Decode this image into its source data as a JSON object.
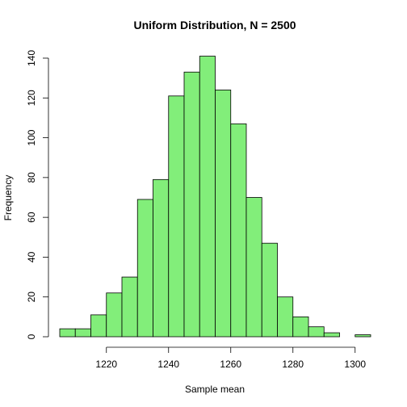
{
  "chart_data": {
    "type": "bar",
    "title": "Uniform Distribution, N =  2500",
    "xlabel": "Sample mean",
    "ylabel": "Frequency",
    "bin_edges": [
      1205,
      1210,
      1215,
      1220,
      1225,
      1230,
      1235,
      1240,
      1245,
      1250,
      1255,
      1260,
      1265,
      1270,
      1275,
      1280,
      1285,
      1290,
      1295,
      1300,
      1305
    ],
    "values": [
      4,
      4,
      11,
      22,
      30,
      69,
      79,
      121,
      133,
      141,
      124,
      107,
      70,
      47,
      20,
      10,
      5,
      2,
      0,
      1
    ],
    "xlim": [
      1205,
      1305
    ],
    "ylim": [
      0,
      140
    ],
    "x_ticks": [
      1220,
      1240,
      1260,
      1280,
      1300
    ],
    "y_ticks": [
      0,
      20,
      40,
      60,
      80,
      100,
      120,
      140
    ],
    "bar_color": "#82ee7a",
    "bar_stroke": "#000000",
    "grid": false,
    "legend": false
  }
}
